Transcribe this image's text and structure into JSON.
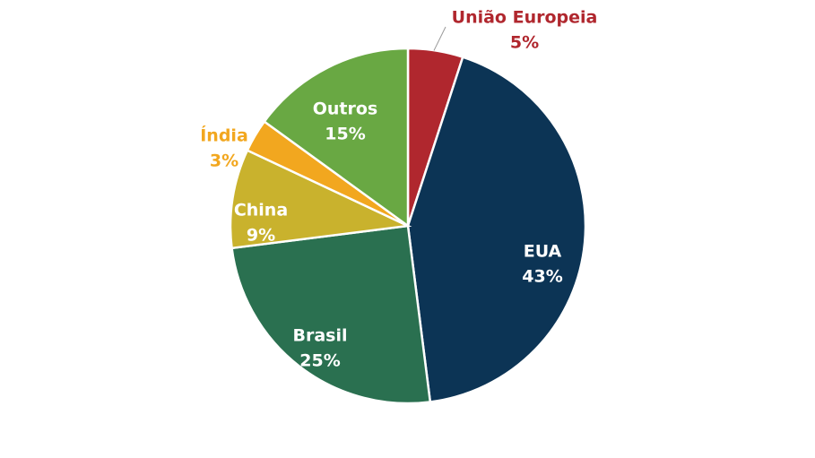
{
  "chart_data": {
    "type": "pie",
    "categories": [
      "União Europeia",
      "EUA",
      "Brasil",
      "China",
      "Índia",
      "Outros"
    ],
    "values": [
      5,
      43,
      25,
      9,
      3,
      15
    ],
    "value_labels": [
      "5%",
      "43%",
      "25%",
      "9%",
      "3%",
      "15%"
    ],
    "colors": [
      "#b0272e",
      "#0c3455",
      "#2a7050",
      "#c9b22d",
      "#f2a71f",
      "#69a843"
    ]
  }
}
